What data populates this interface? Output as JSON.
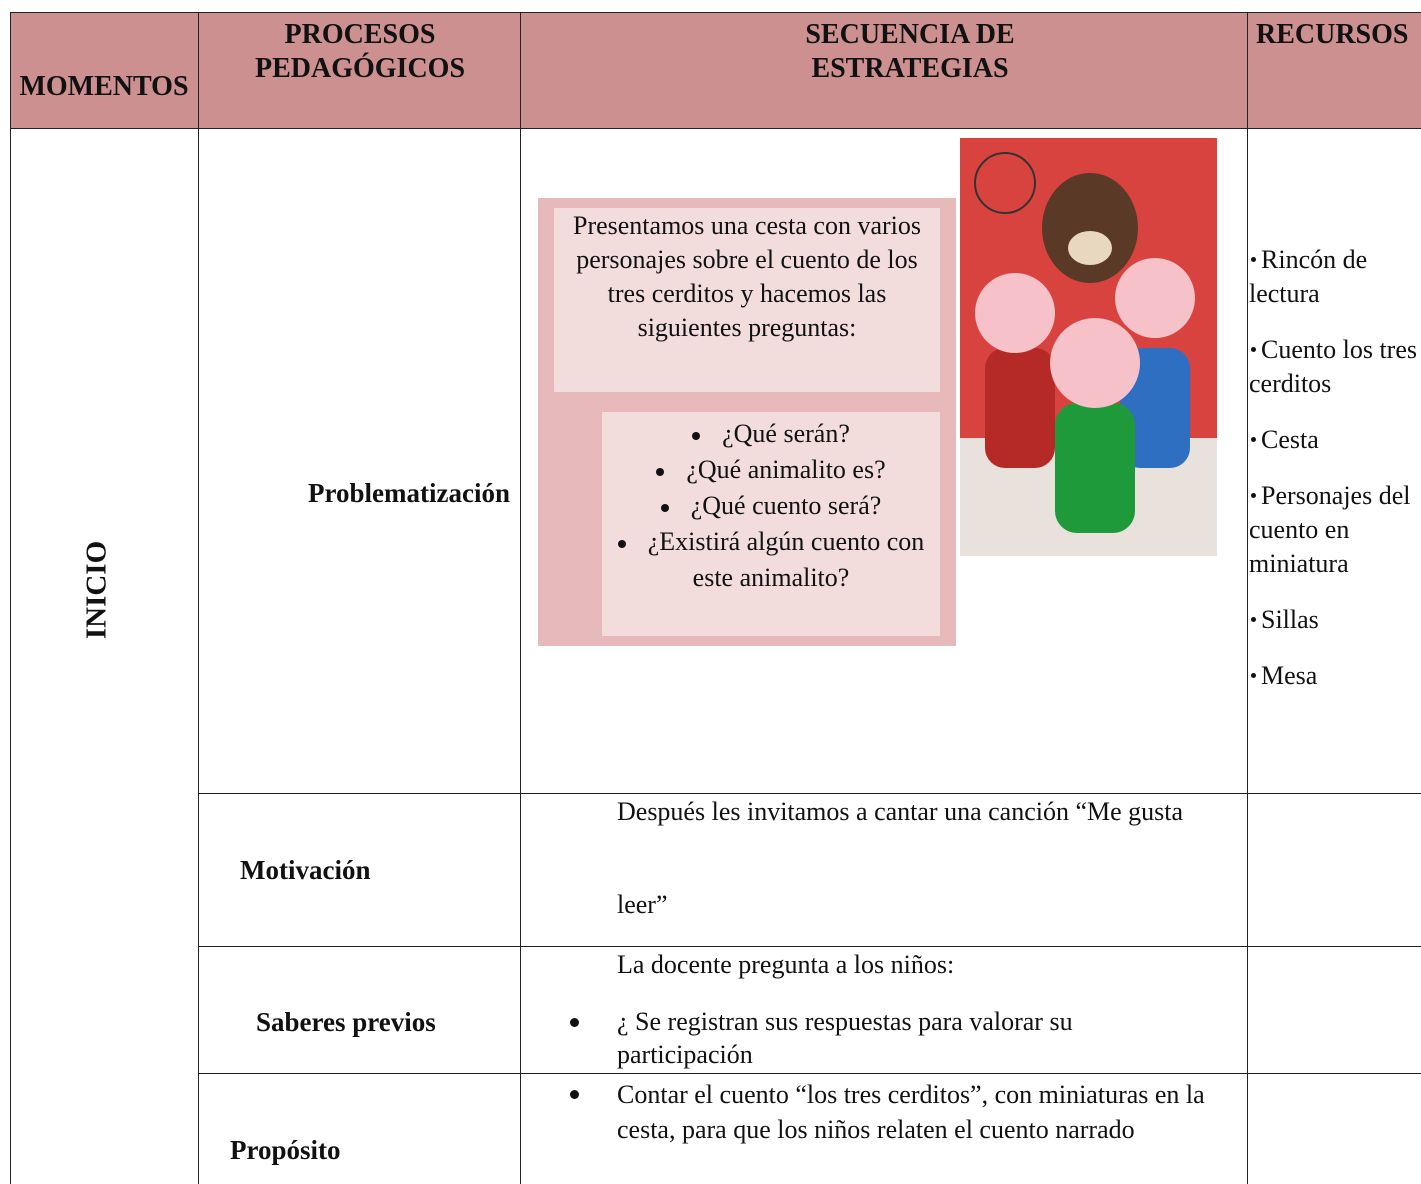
{
  "table": {
    "headers": [
      "MOMENTOS",
      "PROCESOS PEDAGÓGICOS",
      "SECUENCIA DE ESTRATEGIAS",
      "RECURSOS"
    ],
    "moment": "INICIO",
    "rows": [
      {
        "process": "Problematización",
        "intro": "Presentamos una cesta con varios personajes sobre el cuento de los tres cerditos y hacemos las siguientes preguntas:",
        "questions": [
          "¿Qué serán?",
          "¿Qué animalito es?",
          "¿Qué cuento será?",
          "¿Existirá algún cuento con este animalito?"
        ],
        "resources": [
          "Rincón de lectura",
          "Cuento los tres cerditos",
          "Cesta",
          "Personajes del cuento en miniatura",
          "Sillas",
          "Mesa"
        ]
      },
      {
        "process": "Motivación",
        "strategy": [
          "Después les invitamos a cantar una canción “Me gusta",
          "leer”"
        ]
      },
      {
        "process": "Saberes previos",
        "strategy_intro": "La docente pregunta a los niños:",
        "strategy_bullets": [
          "¿ Se registran sus respuestas para valorar su participación"
        ]
      },
      {
        "process": "Propósito",
        "strategy_bullets": [
          "Contar el cuento “los tres cerditos”, con miniaturas en la cesta, para que los niños relaten el cuento narrado"
        ]
      }
    ]
  }
}
